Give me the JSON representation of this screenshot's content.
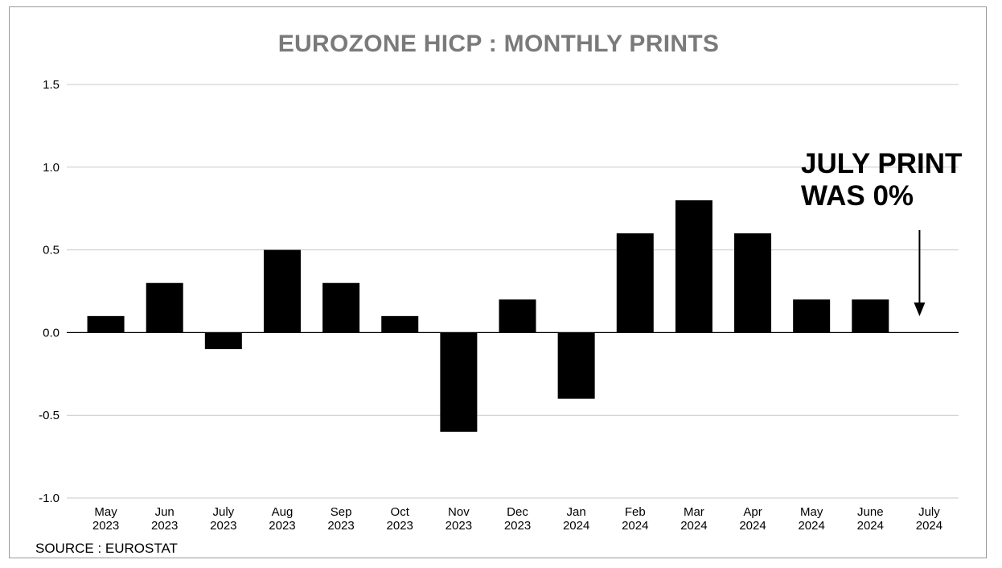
{
  "chart_data": {
    "type": "bar",
    "title": "EUROZONE HICP : MONTHLY PRINTS",
    "xlabel": "",
    "ylabel": "",
    "ylim": [
      -1.0,
      1.5
    ],
    "yticks": [
      "1.5",
      "1.0",
      "0.5",
      "0.0",
      "-0.5",
      "-1.0"
    ],
    "categories": [
      [
        "May",
        "2023"
      ],
      [
        "Jun",
        "2023"
      ],
      [
        "July",
        "2023"
      ],
      [
        "Aug",
        "2023"
      ],
      [
        "Sep",
        "2023"
      ],
      [
        "Oct",
        "2023"
      ],
      [
        "Nov",
        "2023"
      ],
      [
        "Dec",
        "2023"
      ],
      [
        "Jan",
        "2024"
      ],
      [
        "Feb",
        "2024"
      ],
      [
        "Mar",
        "2024"
      ],
      [
        "Apr",
        "2024"
      ],
      [
        "May",
        "2024"
      ],
      [
        "June",
        "2024"
      ],
      [
        "July",
        "2024"
      ]
    ],
    "values": [
      0.1,
      0.3,
      -0.1,
      0.5,
      0.3,
      0.1,
      -0.6,
      0.2,
      -0.4,
      0.6,
      0.8,
      0.6,
      0.2,
      0.2,
      0.0
    ],
    "bar_color": "#000000",
    "grid": true,
    "annotation": {
      "lines": [
        "JULY PRINT",
        "WAS 0%"
      ],
      "target_category_index": 14
    },
    "source": "SOURCE : EUROSTAT"
  }
}
